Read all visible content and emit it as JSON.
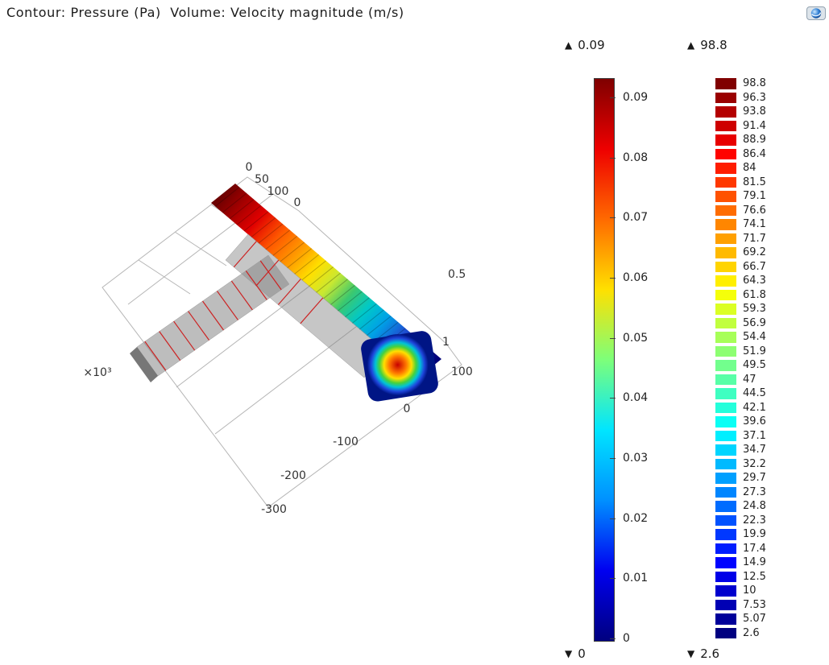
{
  "header": {
    "title": "Contour: Pressure (Pa)  Volume: Velocity magnitude (m/s)",
    "logo": "comsol-logo"
  },
  "glyphs": {
    "up": "▲",
    "down": "▼"
  },
  "chart_data": {
    "type": "3d-surface",
    "title": "Contour: Pressure (Pa)  Volume: Velocity magnitude (m/s)",
    "plots": [
      {
        "kind": "contour",
        "quantity": "Pressure",
        "unit": "Pa"
      },
      {
        "kind": "volume",
        "quantity": "Velocity magnitude",
        "unit": "m/s"
      }
    ],
    "scene_ticks": [
      "0",
      "50",
      "100",
      "0",
      "0.5",
      "1",
      "100",
      "0",
      "-100",
      "-200",
      "-300",
      "×10³"
    ],
    "colors": {
      "contour_line": "#cc2222",
      "wireframe": "#b5b5b5",
      "colormap_max": "#7f0000",
      "colormap_min": "#00007f"
    },
    "colormap_stops": [
      "#7f0000",
      "#ee0000",
      "#ff6a00",
      "#ffe000",
      "#7dff7a",
      "#00e5ff",
      "#0090ff",
      "#0000f0",
      "#00007f"
    ],
    "legends": [
      {
        "id": "pressure",
        "title": "Contour: Pressure (Pa)",
        "style": "continuous",
        "max": "0.09",
        "min": "0",
        "ticks": [
          "0.09",
          "0.08",
          "0.07",
          "0.06",
          "0.05",
          "0.04",
          "0.03",
          "0.02",
          "0.01",
          "0"
        ]
      },
      {
        "id": "velocity",
        "title": "Volume: Velocity magnitude (m/s)",
        "style": "discrete",
        "max": "98.8",
        "min": "2.6",
        "ticks": [
          "98.8",
          "96.3",
          "93.8",
          "91.4",
          "88.9",
          "86.4",
          "84",
          "81.5",
          "79.1",
          "76.6",
          "74.1",
          "71.7",
          "69.2",
          "66.7",
          "64.3",
          "61.8",
          "59.3",
          "56.9",
          "54.4",
          "51.9",
          "49.5",
          "47",
          "44.5",
          "42.1",
          "39.6",
          "37.1",
          "34.7",
          "32.2",
          "29.7",
          "27.3",
          "24.8",
          "22.3",
          "19.9",
          "17.4",
          "14.9",
          "12.5",
          "10",
          "7.53",
          "5.07",
          "2.6"
        ]
      }
    ]
  }
}
